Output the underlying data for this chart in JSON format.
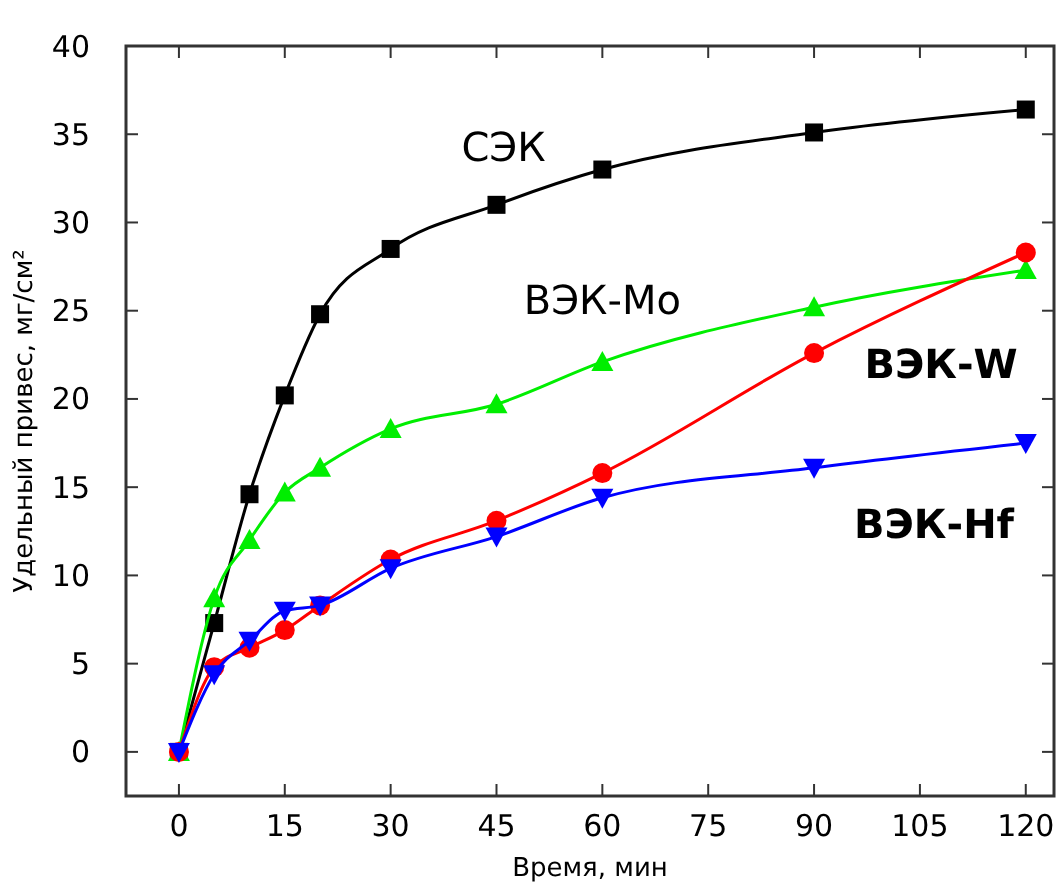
{
  "chart_data": {
    "type": "line",
    "xlabel": "Время, мин",
    "ylabel": "Удельный привес, мг/см²",
    "x": [
      0,
      5,
      10,
      15,
      20,
      30,
      45,
      60,
      90,
      120
    ],
    "xlim": [
      -7.5,
      124
    ],
    "xticks": [
      0,
      15,
      30,
      45,
      60,
      75,
      90,
      105,
      120
    ],
    "ylim": [
      -2.5,
      40
    ],
    "yticks": [
      0,
      5,
      10,
      15,
      20,
      25,
      30,
      35,
      40
    ],
    "series": [
      {
        "name": "СЭК",
        "color": "#000000",
        "marker": "square",
        "values": [
          0,
          7.3,
          14.6,
          20.2,
          24.8,
          28.5,
          31,
          33,
          35.1,
          36.4
        ]
      },
      {
        "name": "ВЭК-Mo",
        "color": "#00ee00",
        "marker": "triangle",
        "values": [
          0,
          8.7,
          12,
          14.7,
          16.1,
          18.3,
          19.7,
          22.1,
          25.2,
          27.3
        ]
      },
      {
        "name": "ВЭК-W",
        "color": "#ff0000",
        "marker": "circle",
        "values": [
          0,
          4.8,
          5.9,
          6.9,
          8.3,
          10.9,
          13.1,
          15.8,
          22.6,
          28.3
        ]
      },
      {
        "name": "ВЭК-Hf",
        "color": "#0000ff",
        "marker": "triangle-down",
        "values": [
          0,
          4.4,
          6.3,
          8,
          8.3,
          10.4,
          12.2,
          14.4,
          16.1,
          17.5
        ]
      }
    ]
  }
}
